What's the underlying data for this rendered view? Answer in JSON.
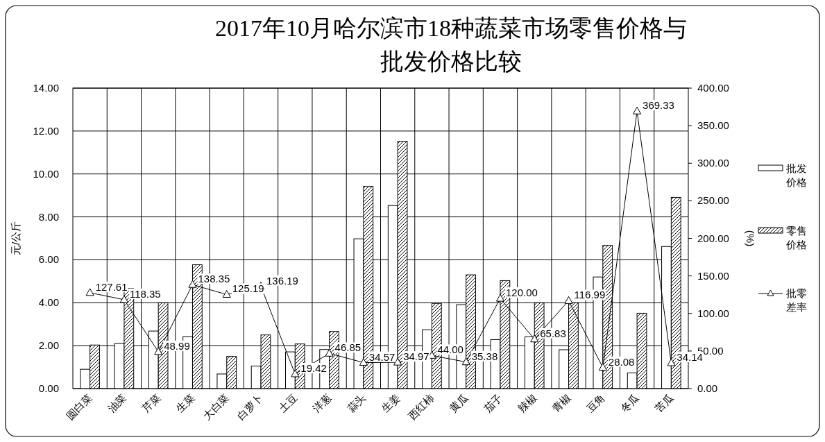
{
  "chart_data": {
    "type": "bar",
    "title": "2017年10月哈尔滨市18种蔬菜市场零售价格与批发价格比较",
    "ylabel": "元/公斤",
    "y2label": "(%)",
    "categories": [
      "圆白菜",
      "油菜",
      "芹菜",
      "生菜",
      "大白菜",
      "白萝卜",
      "土豆",
      "洋葱",
      "蒜头",
      "生姜",
      "西红柿",
      "黄瓜",
      "茄子",
      "辣椒",
      "青椒",
      "豆角",
      "冬瓜",
      "苦瓜"
    ],
    "series": [
      {
        "name": "批发价格",
        "color": "#ffffff",
        "values": [
          0.9,
          2.1,
          2.68,
          2.42,
          0.68,
          1.05,
          1.71,
          1.82,
          6.98,
          8.53,
          2.74,
          3.91,
          2.28,
          2.41,
          1.81,
          5.2,
          0.73,
          6.62
        ]
      },
      {
        "name": "零售价格",
        "color": "#000000",
        "values": [
          2.03,
          4.66,
          4.0,
          5.77,
          1.5,
          2.5,
          2.08,
          2.66,
          9.42,
          11.52,
          3.97,
          5.3,
          5.03,
          4.0,
          4.0,
          6.67,
          3.51,
          8.91
        ]
      },
      {
        "name": "批零差率",
        "type": "line",
        "axis": "y2",
        "color": "#000000",
        "marker": "triangle",
        "value_labels": [
          "127.61",
          "118.35",
          "48.99",
          "138.35",
          "125.19",
          "136.19",
          "19.42",
          "46.85",
          "34.57",
          "34.97",
          "44.00",
          "35.38",
          "120.00",
          "65.83",
          "116.99",
          "28.08",
          "369.33",
          "34.14"
        ],
        "values": [
          127.61,
          118.35,
          48.99,
          138.35,
          125.19,
          136.19,
          19.42,
          46.85,
          34.57,
          34.97,
          44.0,
          35.38,
          120.0,
          65.83,
          116.99,
          28.08,
          369.33,
          34.14
        ]
      }
    ],
    "ylim": [
      0,
      14
    ],
    "yticks": [
      {
        "value": 0,
        "label": "0.00"
      },
      {
        "value": 2,
        "label": "2.00"
      },
      {
        "value": 4,
        "label": "4.00"
      },
      {
        "value": 6,
        "label": "6.00"
      },
      {
        "value": 8,
        "label": "8.00"
      },
      {
        "value": 10,
        "label": "10.00"
      },
      {
        "value": 12,
        "label": "12.00"
      },
      {
        "value": 14,
        "label": "14.00"
      }
    ],
    "y2lim": [
      0,
      400
    ],
    "y2ticks": [
      {
        "value": 0,
        "label": "0.00"
      },
      {
        "value": 50,
        "label": "50.00"
      },
      {
        "value": 100,
        "label": "100.00"
      },
      {
        "value": 150,
        "label": "150.00"
      },
      {
        "value": 200,
        "label": "200.00"
      },
      {
        "value": 250,
        "label": "250.00"
      },
      {
        "value": 300,
        "label": "300.00"
      },
      {
        "value": 350,
        "label": "350.00"
      },
      {
        "value": 400,
        "label": "400.00"
      }
    ],
    "grid": true,
    "legend": "right"
  }
}
